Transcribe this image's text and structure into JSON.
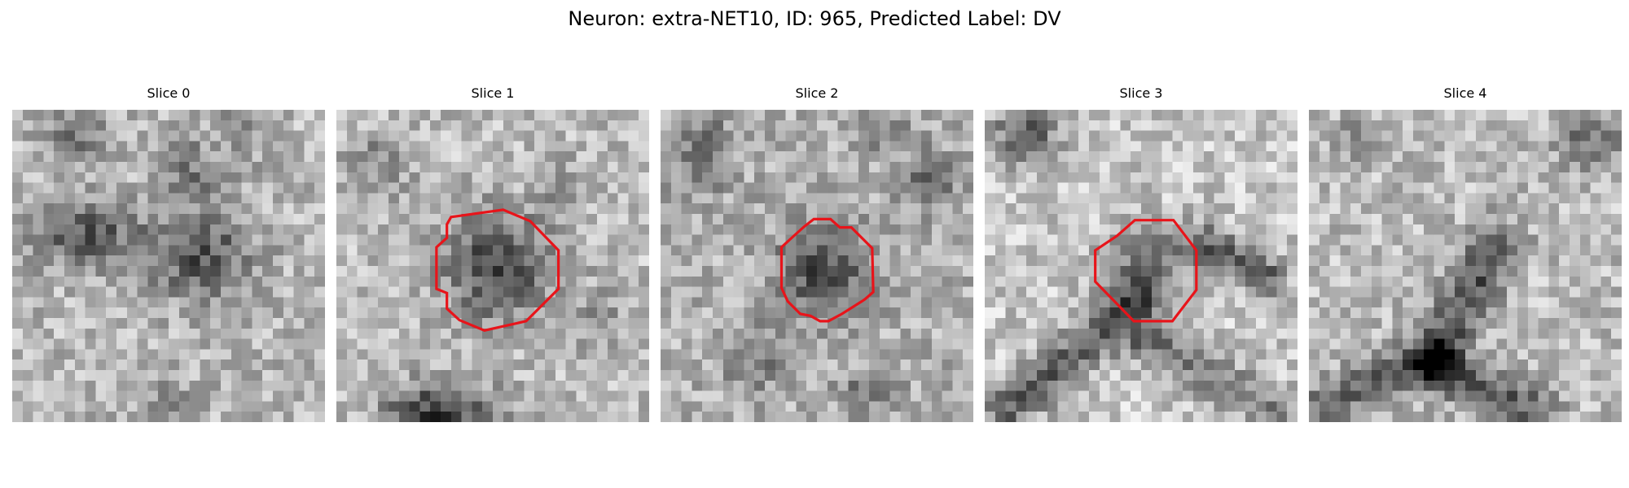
{
  "figure": {
    "title": "Neuron: extra-NET10, ID: 965, Predicted Label: DV"
  },
  "colors": {
    "contour": "#e8141a",
    "background": "#ffffff"
  },
  "panels": [
    {
      "title": "Slice 0",
      "has_contour": false
    },
    {
      "title": "Slice 1",
      "has_contour": true
    },
    {
      "title": "Slice 2",
      "has_contour": true
    },
    {
      "title": "Slice 3",
      "has_contour": true
    },
    {
      "title": "Slice 4",
      "has_contour": false
    }
  ]
}
